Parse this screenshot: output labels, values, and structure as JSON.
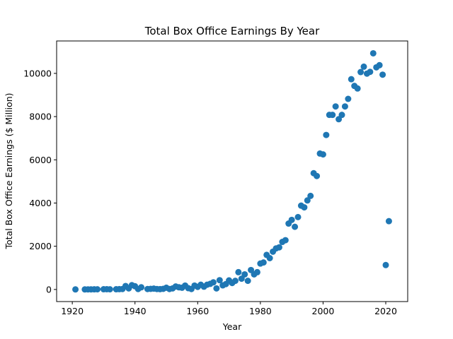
{
  "chart_data": {
    "type": "scatter",
    "title": "Total Box Office Earnings By Year",
    "xlabel": "Year",
    "ylabel": "Total Box Office Earnings ($ Million)",
    "xlim": [
      1915,
      2027
    ],
    "ylim": [
      -560,
      11500
    ],
    "xticks": [
      1920,
      1940,
      1960,
      1980,
      2000,
      2020
    ],
    "yticks": [
      0,
      2000,
      4000,
      6000,
      8000,
      10000
    ],
    "grid": false,
    "legend": "none",
    "color": "#1f77b4",
    "series": [
      {
        "points": [
          [
            1921,
            2
          ],
          [
            1924,
            3
          ],
          [
            1925,
            5
          ],
          [
            1926,
            4
          ],
          [
            1927,
            6
          ],
          [
            1928,
            8
          ],
          [
            1930,
            10
          ],
          [
            1931,
            12
          ],
          [
            1932,
            8
          ],
          [
            1934,
            10
          ],
          [
            1935,
            15
          ],
          [
            1936,
            20
          ],
          [
            1937,
            160
          ],
          [
            1938,
            50
          ],
          [
            1939,
            200
          ],
          [
            1940,
            150
          ],
          [
            1941,
            20
          ],
          [
            1942,
            100
          ],
          [
            1944,
            20
          ],
          [
            1945,
            30
          ],
          [
            1946,
            40
          ],
          [
            1947,
            20
          ],
          [
            1948,
            15
          ],
          [
            1949,
            30
          ],
          [
            1950,
            80
          ],
          [
            1951,
            20
          ],
          [
            1952,
            50
          ],
          [
            1953,
            140
          ],
          [
            1954,
            100
          ],
          [
            1955,
            80
          ],
          [
            1956,
            180
          ],
          [
            1957,
            60
          ],
          [
            1958,
            20
          ],
          [
            1959,
            180
          ],
          [
            1960,
            120
          ],
          [
            1961,
            220
          ],
          [
            1962,
            130
          ],
          [
            1963,
            220
          ],
          [
            1964,
            260
          ],
          [
            1965,
            330
          ],
          [
            1966,
            50
          ],
          [
            1967,
            430
          ],
          [
            1968,
            190
          ],
          [
            1969,
            250
          ],
          [
            1970,
            420
          ],
          [
            1971,
            300
          ],
          [
            1972,
            400
          ],
          [
            1973,
            800
          ],
          [
            1974,
            500
          ],
          [
            1975,
            700
          ],
          [
            1976,
            400
          ],
          [
            1977,
            900
          ],
          [
            1978,
            700
          ],
          [
            1979,
            800
          ],
          [
            1980,
            1200
          ],
          [
            1981,
            1250
          ],
          [
            1982,
            1600
          ],
          [
            1983,
            1450
          ],
          [
            1984,
            1750
          ],
          [
            1985,
            1900
          ],
          [
            1986,
            1950
          ],
          [
            1987,
            2200
          ],
          [
            1988,
            2280
          ],
          [
            1989,
            3050
          ],
          [
            1990,
            3220
          ],
          [
            1991,
            2900
          ],
          [
            1992,
            3350
          ],
          [
            1993,
            3880
          ],
          [
            1994,
            3800
          ],
          [
            1995,
            4120
          ],
          [
            1996,
            4330
          ],
          [
            1997,
            5380
          ],
          [
            1998,
            5250
          ],
          [
            1999,
            6290
          ],
          [
            2000,
            6250
          ],
          [
            2001,
            7150
          ],
          [
            2002,
            8080
          ],
          [
            2003,
            8080
          ],
          [
            2004,
            8470
          ],
          [
            2005,
            7880
          ],
          [
            2006,
            8080
          ],
          [
            2007,
            8470
          ],
          [
            2008,
            8820
          ],
          [
            2009,
            9730
          ],
          [
            2010,
            9420
          ],
          [
            2011,
            9300
          ],
          [
            2012,
            10060
          ],
          [
            2013,
            10310
          ],
          [
            2014,
            9990
          ],
          [
            2015,
            10070
          ],
          [
            2016,
            10930
          ],
          [
            2017,
            10280
          ],
          [
            2018,
            10380
          ],
          [
            2019,
            9940
          ],
          [
            2020,
            1130
          ],
          [
            2021,
            3160
          ]
        ]
      }
    ]
  }
}
